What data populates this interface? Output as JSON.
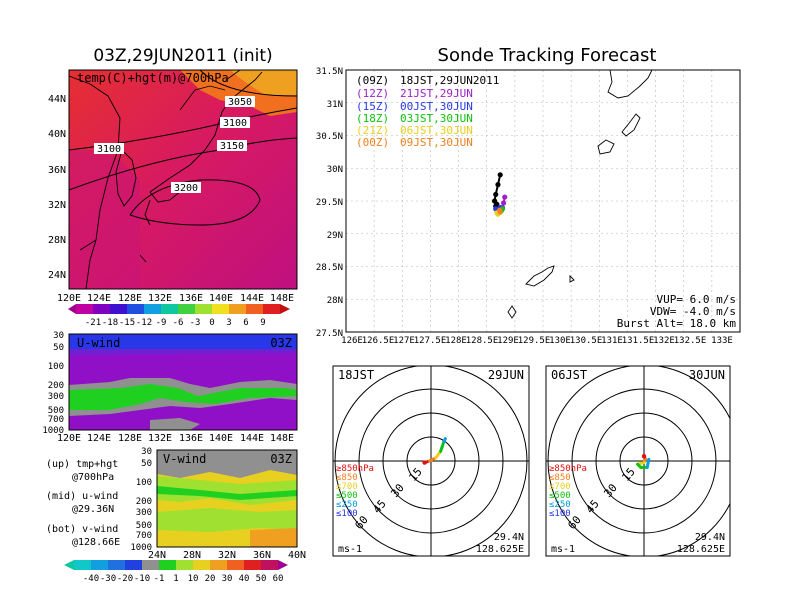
{
  "left": {
    "title": "03Z,29JUN2011 (init)",
    "map": {
      "label": "temp(C)+hgt(m)@700hPa",
      "lat_ticks": [
        "44N",
        "40N",
        "36N",
        "32N",
        "28N",
        "24N"
      ],
      "lon_ticks": [
        "120E",
        "124E",
        "128E",
        "132E",
        "136E",
        "140E",
        "144E",
        "148E"
      ],
      "contour_labels": [
        "3050",
        "3100",
        "3100",
        "3150",
        "3200"
      ]
    },
    "temp_colorbar": [
      "-21",
      "-18",
      "-15",
      "-12",
      "-9",
      "-6",
      "-3",
      "0",
      "3",
      "6",
      "9"
    ],
    "uwind": {
      "label": "U-wind",
      "time": "03Z",
      "p_ticks": [
        "30",
        "50",
        "100",
        "200",
        "300",
        "500",
        "700",
        "1000"
      ],
      "lon_ticks": [
        "120E",
        "124E",
        "128E",
        "132E",
        "136E",
        "140E",
        "144E",
        "148E"
      ]
    },
    "vwind": {
      "label": "V-wind",
      "time": "03Z",
      "p_ticks": [
        "30",
        "50",
        "100",
        "200",
        "300",
        "500",
        "700",
        "1000"
      ],
      "lat_ticks": [
        "24N",
        "28N",
        "32N",
        "36N",
        "40N"
      ]
    },
    "notes": [
      {
        "line1": "(up) tmp+hgt",
        "line2": "@700hPa"
      },
      {
        "line1": "(mid) u-wind",
        "line2": "@29.36N"
      },
      {
        "line1": "(bot) v-wind",
        "line2": "@128.66E"
      }
    ],
    "wind_colorbar": [
      "-40",
      "-30",
      "-20",
      "-10",
      "-1",
      "1",
      "10",
      "20",
      "30",
      "40",
      "50",
      "60"
    ]
  },
  "right": {
    "title": "Sonde Tracking Forecast",
    "lat_ticks": [
      "31.5N",
      "31N",
      "30.5N",
      "30N",
      "29.5N",
      "29N",
      "28.5N",
      "28N",
      "27.5N"
    ],
    "lon_ticks": [
      "126E",
      "126.5E",
      "127E",
      "127.5E",
      "128E",
      "128.5E",
      "129E",
      "129.5E",
      "130E",
      "130.5E",
      "131E",
      "131.5E",
      "132E",
      "132.5E",
      "133E"
    ],
    "legend": [
      {
        "code": "(09Z)",
        "time": "18JST,29JUN2011",
        "color": "#000000"
      },
      {
        "code": "(12Z)",
        "time": "21JST,29JUN",
        "color": "#a020c8"
      },
      {
        "code": "(15Z)",
        "time": "00JST,30JUN",
        "color": "#2838e8"
      },
      {
        "code": "(18Z)",
        "time": "03JST,30JUN",
        "color": "#10c010"
      },
      {
        "code": "(21Z)",
        "time": "06JST,30JUN",
        "color": "#e8d020"
      },
      {
        "code": "(00Z)",
        "time": "09JST,30JUN",
        "color": "#f08020"
      }
    ],
    "params": [
      "VUP= 6.0 m/s",
      "VDW= -4.0 m/s",
      "Burst Alt= 18.0 km"
    ]
  },
  "hodographs": [
    {
      "jst": "18JST",
      "date": "29JUN",
      "lat": "29.4N",
      "lon": "128.625E",
      "unit": "ms-1",
      "ring_labels": [
        "15",
        "30",
        "45",
        "60"
      ],
      "levels": [
        {
          "label": "≥850hPa",
          "color": "#e01010"
        },
        {
          "label": "≤850",
          "color": "#f08020"
        },
        {
          "label": "≤700",
          "color": "#e8d020"
        },
        {
          "label": "≤500",
          "color": "#10c010"
        },
        {
          "label": "≤250",
          "color": "#00a0e0"
        },
        {
          "label": "≤100",
          "color": "#2838e8"
        }
      ]
    },
    {
      "jst": "06JST",
      "date": "30JUN",
      "lat": "29.4N",
      "lon": "128.625E",
      "unit": "ms-1",
      "ring_labels": [
        "15",
        "30",
        "45",
        "60"
      ],
      "levels": [
        {
          "label": "≥850hPa",
          "color": "#e01010"
        },
        {
          "label": "≤850",
          "color": "#f08020"
        },
        {
          "label": "≤700",
          "color": "#e8d020"
        },
        {
          "label": "≤500",
          "color": "#10c010"
        },
        {
          "label": "≤250",
          "color": "#00a0e0"
        },
        {
          "label": "≤100",
          "color": "#2838e8"
        }
      ]
    }
  ],
  "chart_data": [
    {
      "type": "heatmap",
      "title": "03Z,29JUN2011 (init)",
      "subtitle": "temp(C)+hgt(m)@700hPa",
      "xlim": [
        120,
        150
      ],
      "ylim": [
        22,
        47
      ],
      "colorbar_levels": [
        -21,
        -18,
        -15,
        -12,
        -9,
        -6,
        -3,
        0,
        3,
        6,
        9
      ],
      "contours": [
        3050,
        3100,
        3150,
        3200
      ]
    },
    {
      "type": "heatmap",
      "title": "U-wind",
      "xlim": [
        120,
        150
      ],
      "p_levels": [
        30,
        50,
        100,
        200,
        300,
        500,
        700,
        1000
      ],
      "colorbar_levels": [
        -40,
        -30,
        -20,
        -10,
        -1,
        1,
        10,
        20,
        30,
        40,
        50,
        60
      ]
    },
    {
      "type": "heatmap",
      "title": "V-wind",
      "xlim": [
        24,
        40
      ],
      "p_levels": [
        30,
        50,
        100,
        200,
        300,
        500,
        700,
        1000
      ],
      "colorbar_levels": [
        -40,
        -30,
        -20,
        -10,
        -1,
        1,
        10,
        20,
        30,
        40,
        50,
        60
      ]
    },
    {
      "type": "scatter",
      "title": "Sonde Tracking Forecast",
      "xlim": [
        126,
        133
      ],
      "ylim": [
        27.5,
        31.5
      ],
      "series": [
        {
          "name": "(09Z) 18JST,29JUN2011",
          "color": "#000000",
          "x": [
            128.74,
            128.7,
            128.66,
            128.64,
            128.66,
            128.7,
            128.68
          ],
          "y": [
            29.9,
            29.75,
            29.6,
            29.5,
            29.42,
            29.4,
            29.45
          ]
        },
        {
          "name": "(12Z) 21JST,29JUN",
          "color": "#a020c8",
          "x": [
            128.82,
            128.8,
            128.78,
            128.75
          ],
          "y": [
            29.56,
            29.47,
            29.4,
            29.38
          ]
        },
        {
          "name": "(15Z) 00JST,30JUN",
          "color": "#2838e8",
          "x": [
            128.66,
            128.7,
            128.74
          ],
          "y": [
            29.38,
            29.36,
            29.4
          ]
        },
        {
          "name": "(18Z) 03JST,30JUN",
          "color": "#10c010",
          "x": [
            128.72,
            128.76,
            128.78
          ],
          "y": [
            29.34,
            29.35,
            29.38
          ]
        },
        {
          "name": "(21Z) 06JST,30JUN",
          "color": "#e8d020",
          "x": [
            128.68,
            128.7
          ],
          "y": [
            29.32,
            29.3
          ]
        },
        {
          "name": "(00Z) 09JST,30JUN",
          "color": "#f08020",
          "x": [
            128.73,
            128.74
          ],
          "y": [
            29.36,
            29.33
          ]
        }
      ]
    },
    {
      "type": "line",
      "title": "18JST 29JUN",
      "unit": "ms-1",
      "rings": [
        15,
        30,
        45,
        60
      ],
      "u": [
        -4,
        -1,
        3,
        6,
        7,
        8,
        9
      ],
      "v": [
        -1,
        0,
        2,
        6,
        9,
        12,
        14
      ]
    },
    {
      "type": "line",
      "title": "06JST 30JUN",
      "unit": "ms-1",
      "rings": [
        15,
        30,
        45,
        60
      ],
      "u": [
        0,
        1,
        0,
        -4,
        -2,
        2,
        3
      ],
      "v": [
        3,
        1,
        -1,
        -2,
        -4,
        -4,
        1
      ]
    }
  ]
}
